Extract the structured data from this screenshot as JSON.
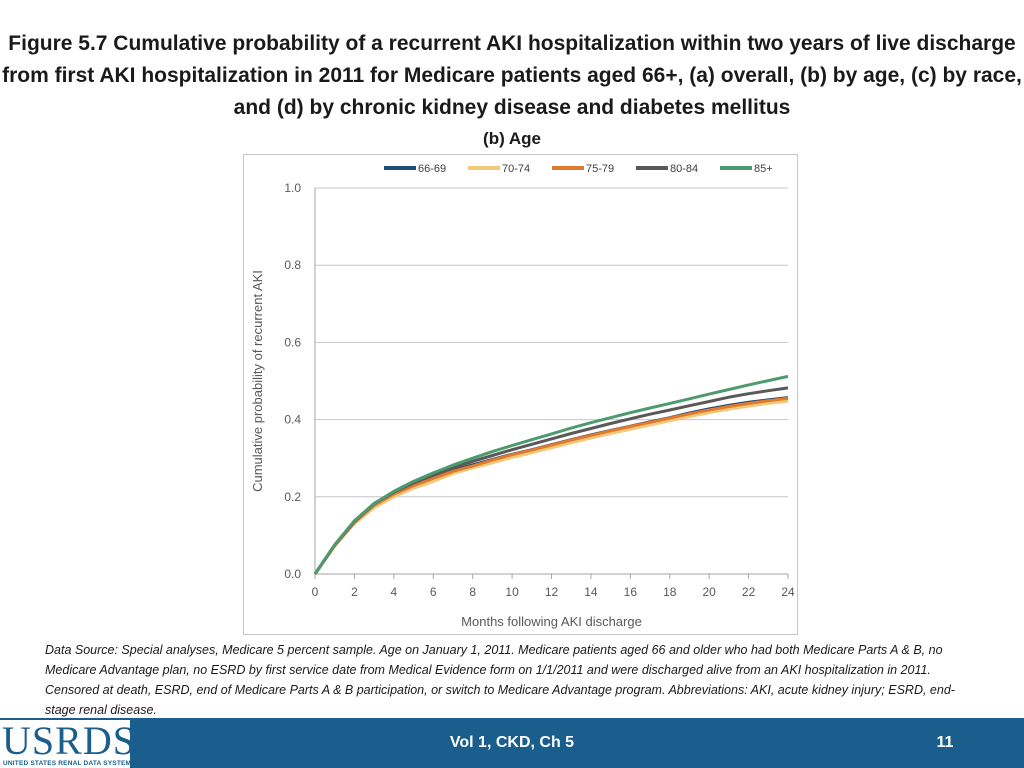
{
  "slide": {
    "title": "Figure 5.7  Cumulative probability of a recurrent AKI hospitalization within two years of live discharge from first AKI hospitalization in 2011 for Medicare patients aged 66+, (a) overall, (b) by age, (c) by race, and (d) by chronic kidney disease and diabetes mellitus",
    "subtitle": "(b) Age",
    "source_note": "Data Source: Special analyses, Medicare 5 percent sample. Age on January 1, 2011. Medicare patients aged 66 and older who had both Medicare Parts A & B, no Medicare Advantage plan, no ESRD by first service date from Medical Evidence form on 1/1/2011 and were discharged alive from an AKI hospitalization in 2011. Censored at death, ESRD, end of Medicare Parts A & B participation, or switch to Medicare Advantage program. Abbreviations: AKI, acute kidney injury; ESRD, end-stage renal disease."
  },
  "footer": {
    "logo_text": "USRDS",
    "logo_subtext": "UNITED STATES RENAL DATA SYSTEM",
    "center_text": "Vol 1, CKD, Ch 5",
    "page_number": "11",
    "background_color": "#1a5e8e"
  },
  "chart_data": {
    "type": "line",
    "title": "",
    "xlabel": "Months following AKI discharge",
    "ylabel": "Cumulative probability of recurrent AKI",
    "xlim": [
      0,
      24
    ],
    "ylim": [
      0,
      1.0
    ],
    "x_ticks": [
      "0",
      "2",
      "4",
      "6",
      "8",
      "10",
      "12",
      "14",
      "16",
      "18",
      "20",
      "22",
      "24"
    ],
    "y_ticks": [
      "0.0",
      "0.2",
      "0.4",
      "0.6",
      "0.8",
      "1.0"
    ],
    "grid": "horizontal",
    "legend_position": "top",
    "x": [
      0,
      1,
      2,
      3,
      4,
      5,
      6,
      7,
      8,
      9,
      10,
      11,
      12,
      13,
      14,
      15,
      16,
      17,
      18,
      19,
      20,
      21,
      22,
      23,
      24
    ],
    "series": [
      {
        "name": "66-69",
        "color": "#1f4e79",
        "values": [
          0,
          0.075,
          0.135,
          0.18,
          0.21,
          0.232,
          0.25,
          0.268,
          0.283,
          0.297,
          0.31,
          0.322,
          0.335,
          0.348,
          0.36,
          0.372,
          0.383,
          0.394,
          0.405,
          0.417,
          0.428,
          0.437,
          0.445,
          0.451,
          0.457
        ]
      },
      {
        "name": "70-74",
        "color": "#f2c879",
        "values": [
          0,
          0.072,
          0.13,
          0.172,
          0.2,
          0.222,
          0.24,
          0.26,
          0.275,
          0.288,
          0.302,
          0.314,
          0.327,
          0.34,
          0.352,
          0.364,
          0.375,
          0.386,
          0.397,
          0.408,
          0.418,
          0.427,
          0.435,
          0.442,
          0.448
        ]
      },
      {
        "name": "75-79",
        "color": "#e07b2e",
        "values": [
          0,
          0.074,
          0.134,
          0.178,
          0.207,
          0.229,
          0.248,
          0.266,
          0.28,
          0.295,
          0.309,
          0.321,
          0.334,
          0.347,
          0.359,
          0.371,
          0.382,
          0.393,
          0.404,
          0.415,
          0.425,
          0.434,
          0.442,
          0.449,
          0.455
        ]
      },
      {
        "name": "80-84",
        "color": "#595959",
        "values": [
          0,
          0.075,
          0.136,
          0.182,
          0.212,
          0.236,
          0.256,
          0.275,
          0.292,
          0.307,
          0.322,
          0.336,
          0.35,
          0.364,
          0.377,
          0.39,
          0.402,
          0.414,
          0.425,
          0.436,
          0.447,
          0.458,
          0.467,
          0.475,
          0.482
        ]
      },
      {
        "name": "85+",
        "color": "#4e9a6f",
        "values": [
          0,
          0.076,
          0.138,
          0.183,
          0.214,
          0.24,
          0.262,
          0.282,
          0.3,
          0.317,
          0.333,
          0.348,
          0.363,
          0.378,
          0.392,
          0.405,
          0.418,
          0.43,
          0.442,
          0.454,
          0.466,
          0.478,
          0.49,
          0.501,
          0.512
        ]
      }
    ]
  }
}
